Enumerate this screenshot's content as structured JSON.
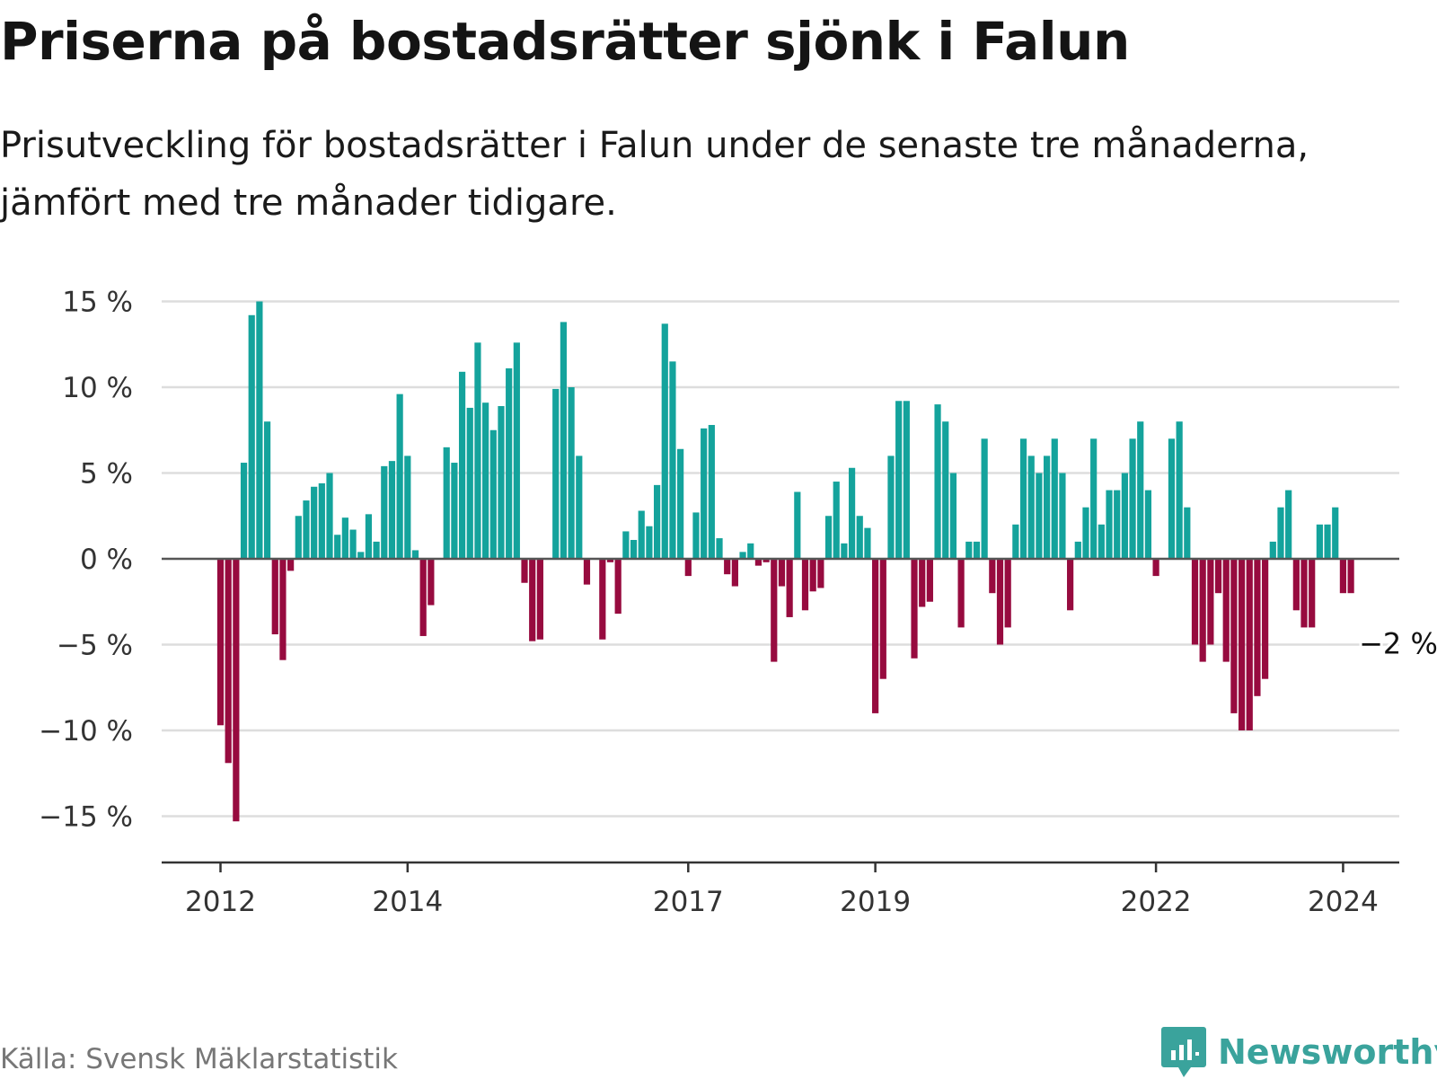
{
  "title": "Priserna på bostadsrätter sjönk i Falun",
  "subtitle": "Prisutveckling för bostadsrätter i Falun under de senaste tre månaderna, jämfört med tre månader tidigare.",
  "source": "Källa: Svensk Mäklarstatistik",
  "brand": "Newsworthy",
  "colors": {
    "positive": "#14a39c",
    "negative": "#970b3f",
    "grid": "#dddddd",
    "zero": "#555555",
    "brand": "#3aa39c"
  },
  "chart_data": {
    "type": "bar",
    "title": "Priserna på bostadsrätter sjönk i Falun",
    "xlabel": "",
    "ylabel": "",
    "ylim": [
      -17,
      15.5
    ],
    "yticks": [
      {
        "value": 15,
        "label": "15 %"
      },
      {
        "value": 10,
        "label": "10 %"
      },
      {
        "value": 5,
        "label": "5 %"
      },
      {
        "value": 0,
        "label": "0 %"
      },
      {
        "value": -5,
        "label": "−5 %"
      },
      {
        "value": -10,
        "label": "−10 %"
      },
      {
        "value": -15,
        "label": "−15 %"
      }
    ],
    "xticks": [
      {
        "index": 0,
        "label": "2012"
      },
      {
        "index": 24,
        "label": "2014"
      },
      {
        "index": 60,
        "label": "2017"
      },
      {
        "index": 84,
        "label": "2019"
      },
      {
        "index": 120,
        "label": "2022"
      },
      {
        "index": 144,
        "label": "2024"
      }
    ],
    "start": "2012-01",
    "values": [
      -9.7,
      -11.9,
      -15.3,
      5.6,
      14.2,
      15.0,
      8.0,
      -4.4,
      -5.9,
      -0.7,
      2.5,
      3.4,
      4.2,
      4.4,
      5.0,
      1.4,
      2.4,
      1.7,
      0.4,
      2.6,
      1.0,
      5.4,
      5.7,
      9.6,
      6.0,
      0.5,
      -4.5,
      -2.7,
      0,
      6.5,
      5.6,
      10.9,
      8.8,
      12.6,
      9.1,
      7.5,
      8.9,
      11.1,
      12.6,
      -1.4,
      -4.8,
      -4.7,
      0,
      9.9,
      13.8,
      10.0,
      6.0,
      -1.5,
      0,
      -4.7,
      -0.2,
      -3.2,
      1.6,
      1.1,
      2.8,
      1.9,
      4.3,
      13.7,
      11.5,
      6.4,
      -1.0,
      2.7,
      7.6,
      7.8,
      1.2,
      -0.9,
      -1.6,
      0.4,
      0.9,
      -0.4,
      -0.2,
      -6.0,
      -1.6,
      -3.4,
      3.9,
      -3.0,
      -1.9,
      -1.7,
      2.5,
      4.5,
      0.9,
      5.3,
      2.5,
      1.8,
      -9.0,
      -7.0,
      6.0,
      9.2,
      9.2,
      -5.8,
      -2.8,
      -2.5,
      9.0,
      8.0,
      5.0,
      -4.0,
      1.0,
      1.0,
      7.0,
      -2.0,
      -5.0,
      -4.0,
      2.0,
      7.0,
      6.0,
      5.0,
      6.0,
      7.0,
      5.0,
      -3.0,
      1.0,
      3.0,
      7.0,
      2.0,
      4.0,
      4.0,
      5.0,
      7.0,
      8.0,
      4.0,
      -1.0,
      0,
      7.0,
      8.0,
      3.0,
      -5.0,
      -6.0,
      -5.0,
      -2.0,
      -6.0,
      -9.0,
      -10.0,
      -10.0,
      -8.0,
      -7.0,
      1.0,
      3.0,
      4.0,
      -3.0,
      -4.0,
      -4.0,
      2.0,
      2.0,
      3.0,
      -2.0,
      -2.0
    ],
    "annotation": {
      "index": 145,
      "label": "−2 %"
    }
  }
}
